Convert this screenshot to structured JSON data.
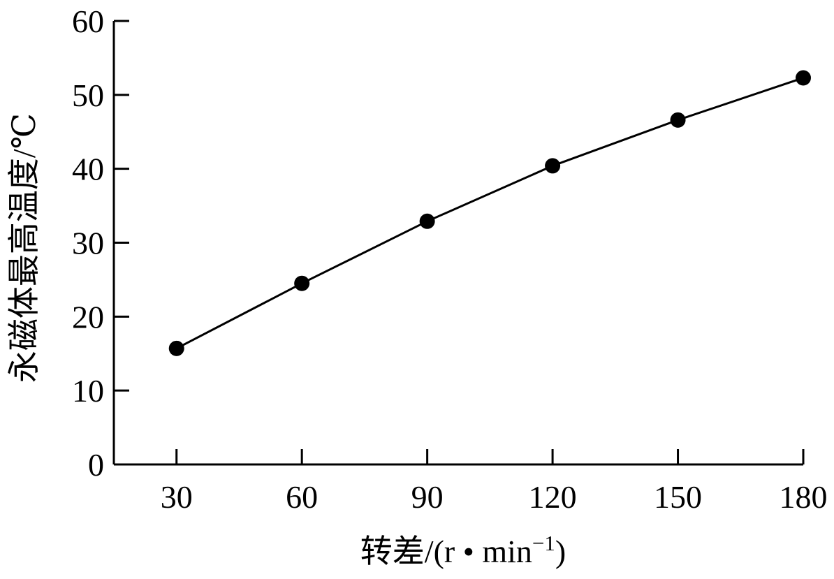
{
  "chart_data": {
    "type": "line",
    "title": "",
    "xlabel": "转差/(r·min⁻¹)",
    "xlabel_main": "转差/(r • min",
    "xlabel_sup": "−1",
    "xlabel_close": ")",
    "ylabel": "永磁体最高温度/℃",
    "x": [
      30,
      60,
      90,
      120,
      150,
      180
    ],
    "y": [
      15.7,
      24.5,
      32.9,
      40.4,
      46.6,
      52.3
    ],
    "xticks": [
      "30",
      "60",
      "90",
      "120",
      "150",
      "180"
    ],
    "yticks": [
      "0",
      "10",
      "20",
      "30",
      "40",
      "50",
      "60"
    ],
    "xlim": [
      15,
      180
    ],
    "ylim": [
      0,
      60
    ],
    "grid": false,
    "legend": "none",
    "line_color": "#000000",
    "marker": "filled-circle"
  }
}
